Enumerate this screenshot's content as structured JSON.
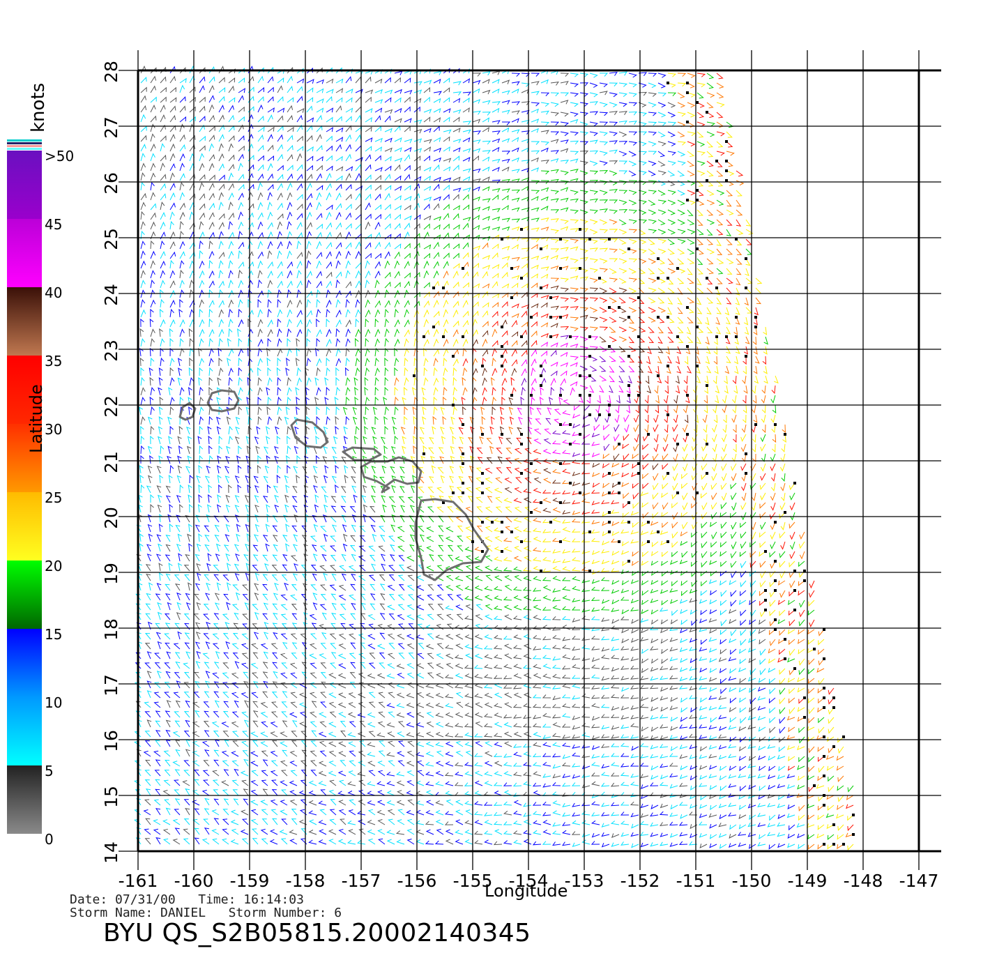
{
  "map": {
    "lon_ticks": [
      "-161",
      "-160",
      "-159",
      "-158",
      "-157",
      "-156",
      "-155",
      "-154",
      "-153",
      "-152",
      "-151",
      "-150",
      "-149",
      "-148",
      "-147"
    ],
    "lat_ticks": [
      "28",
      "27",
      "26",
      "25",
      "24",
      "23",
      "22",
      "21",
      "20",
      "19",
      "18",
      "17",
      "16",
      "15",
      "14"
    ],
    "lon_range": [
      -161,
      -147
    ],
    "lat_range": [
      14,
      28
    ],
    "xlabel": "Longitude",
    "ylabel": "Latitude",
    "coastline_color": "#6e6e6e",
    "grid_color": "#000000"
  },
  "legend": {
    "title": "knots",
    "labels": [
      ">50",
      "45",
      "40",
      "35",
      "30",
      "25",
      "20",
      "15",
      "10",
      "5",
      "0"
    ],
    "colors": {
      "0-5": "#555555",
      "5-10": "#00e0ff",
      "10-15": "#0000ff",
      "15-20": "#00cc00",
      "20-25": "#ffee00",
      "25-30": "#ff7700",
      "30-35": "#ff1100",
      "35-40": "#6a2a10",
      "40-45": "#ff00ff",
      "45-50": "#7700cc"
    }
  },
  "footer": {
    "date_line": "Date: 07/31/00   Time: 16:14:03",
    "storm_line": "Storm Name: DANIEL   Storm Number: 6",
    "file": "BYU QS_S2B05815.20002140345"
  }
}
